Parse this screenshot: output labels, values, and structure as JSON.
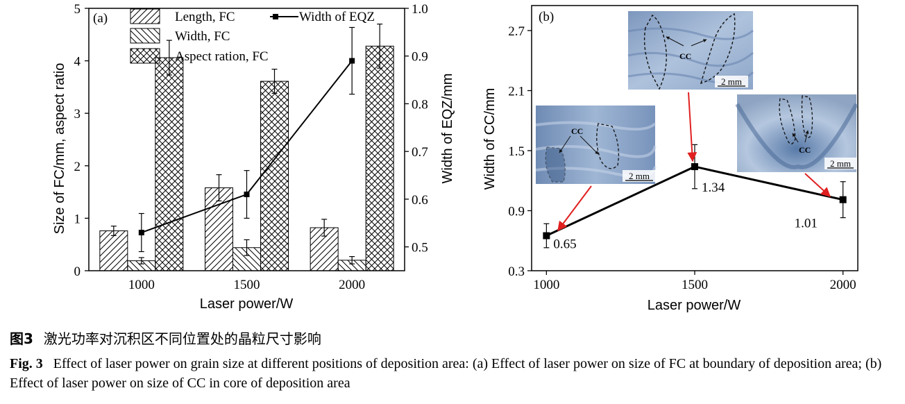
{
  "chart_data": [
    {
      "panel_label": "(a)",
      "type": "bar",
      "xlabel": "Laser power/W",
      "ylabel": "Size of FC/mm, aspect ratio",
      "ylabel_right": "Width of EQZ/mm",
      "categories": [
        "1000",
        "1500",
        "2000"
      ],
      "ylim": [
        0,
        5
      ],
      "yticks": [
        "0",
        "1",
        "2",
        "3",
        "4",
        "5"
      ],
      "ylim_right": [
        0.45,
        1.0
      ],
      "yticks_right": [
        "0.5",
        "0.6",
        "0.7",
        "0.8",
        "0.9",
        "1.0"
      ],
      "series": [
        {
          "name": "Length, FC",
          "pattern": "diag-right",
          "values": [
            0.76,
            1.58,
            0.82
          ],
          "errors": [
            0.09,
            0.25,
            0.16
          ]
        },
        {
          "name": "Width, FC",
          "pattern": "diag-left",
          "values": [
            0.19,
            0.44,
            0.2
          ],
          "errors": [
            0.06,
            0.15,
            0.07
          ]
        },
        {
          "name": "Aspect ration, FC",
          "pattern": "crosshatch",
          "values": [
            4.06,
            3.61,
            4.28
          ],
          "errors": [
            0.33,
            0.23,
            0.42
          ]
        }
      ],
      "line_series": {
        "name": "Width of EQZ",
        "axis": "right",
        "x": [
          "1000",
          "1500",
          "2000"
        ],
        "values": [
          0.53,
          0.61,
          0.89
        ],
        "errors": [
          0.04,
          0.05,
          0.07
        ]
      },
      "legend": "top"
    },
    {
      "panel_label": "(b)",
      "type": "line",
      "xlabel": "Laser power/W",
      "ylabel": "Width of CC/mm",
      "x": [
        1000,
        1500,
        2000
      ],
      "xlim": [
        950,
        2050
      ],
      "xticks": [
        "1000",
        "1500",
        "2000"
      ],
      "ylim": [
        0.3,
        2.95
      ],
      "yticks": [
        "0.3",
        "0.9",
        "1.5",
        "2.1",
        "2.7"
      ],
      "values": [
        0.65,
        1.34,
        1.01
      ],
      "errors": [
        0.12,
        0.22,
        0.18
      ],
      "data_labels": [
        "0.65",
        "1.34",
        "1.01"
      ],
      "insets": [
        {
          "x": 1000,
          "label": "CC",
          "scale_bar": "2 mm"
        },
        {
          "x": 1500,
          "label": "CC",
          "scale_bar": "2 mm"
        },
        {
          "x": 2000,
          "label": "CC",
          "scale_bar": "2 mm"
        }
      ]
    }
  ],
  "caption": {
    "cn_label": "图3",
    "cn_text": "激光功率对沉积区不同位置处的晶粒尺寸影响",
    "en_label": "Fig. 3",
    "en_text": "Effect of laser power on grain size at different positions of deposition area: (a) Effect of laser power on size of FC at boundary of deposition area; (b) Effect of laser power on size of CC in core of deposition area"
  },
  "colors": {
    "axis": "#000000",
    "arrow": "#e02020",
    "metal_light": "#a8bcd6",
    "metal_dark": "#5b78a0"
  }
}
